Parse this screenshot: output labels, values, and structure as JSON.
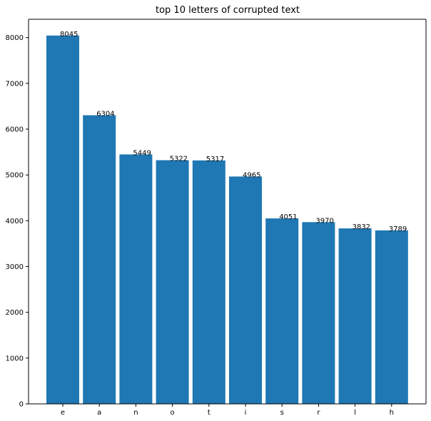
{
  "chart_data": {
    "type": "bar",
    "title": "top 10 letters of corrupted text",
    "xlabel": "",
    "ylabel": "",
    "categories": [
      "e",
      "a",
      "n",
      "o",
      "t",
      "i",
      "s",
      "r",
      "l",
      "h"
    ],
    "values": [
      8045,
      6304,
      5449,
      5322,
      5317,
      4965,
      4051,
      3970,
      3832,
      3789
    ],
    "ylim": [
      0,
      8400
    ],
    "yticks": [
      0,
      1000,
      2000,
      3000,
      4000,
      5000,
      6000,
      7000,
      8000
    ],
    "grid": false,
    "legend": "none",
    "bar_color": "#1f77b4"
  }
}
